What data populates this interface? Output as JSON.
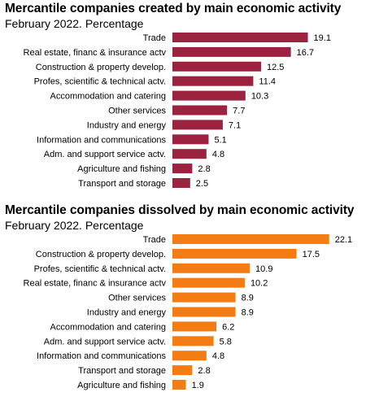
{
  "chart_data": [
    {
      "type": "bar",
      "orientation": "horizontal",
      "title": "Mercantile companies created by main economic activity",
      "subtitle": "February 2022. Percentage",
      "categories": [
        "Trade",
        "Real estate, financ & insurance actv",
        "Construction & property develop.",
        "Profes, scientific & technical actv.",
        "Accommodation and catering",
        "Other services",
        "Industry and energy",
        "Information and communications",
        "Adm. and support service actv.",
        "Agriculture and fishing",
        "Transport and storage"
      ],
      "values": [
        19.1,
        16.7,
        12.5,
        11.4,
        10.3,
        7.7,
        7.1,
        5.1,
        4.8,
        2.8,
        2.5
      ],
      "data_labels": [
        "19.1",
        "16.7",
        "12.5",
        "11.4",
        "10.3",
        "7.7",
        "7.1",
        "5.1",
        "4.8",
        "2.8",
        "2.5"
      ],
      "color": "#9b2340",
      "xlim": [
        0,
        22.5
      ]
    },
    {
      "type": "bar",
      "orientation": "horizontal",
      "title": "Mercantile companies dissolved by main economic activity",
      "subtitle": "February 2022. Percentage",
      "categories": [
        "Trade",
        "Construction & property develop.",
        "Profes, scientific & technical actv.",
        "Real estate, financ & insurance actv",
        "Other services",
        "Industry and energy",
        "Accommodation and catering",
        "Adm. and support service actv.",
        "Information and communications",
        "Transport and storage",
        "Agriculture and fishing"
      ],
      "values": [
        22.1,
        17.5,
        10.9,
        10.2,
        8.9,
        8.9,
        6.2,
        5.8,
        4.8,
        2.8,
        1.9
      ],
      "data_labels": [
        "22.1",
        "17.5",
        "10.9",
        "10.2",
        "8.9",
        "8.9",
        "6.2",
        "5.8",
        "4.8",
        "2.8",
        "1.9"
      ],
      "color": "#f47c14",
      "xlim": [
        0,
        22.5
      ]
    }
  ]
}
